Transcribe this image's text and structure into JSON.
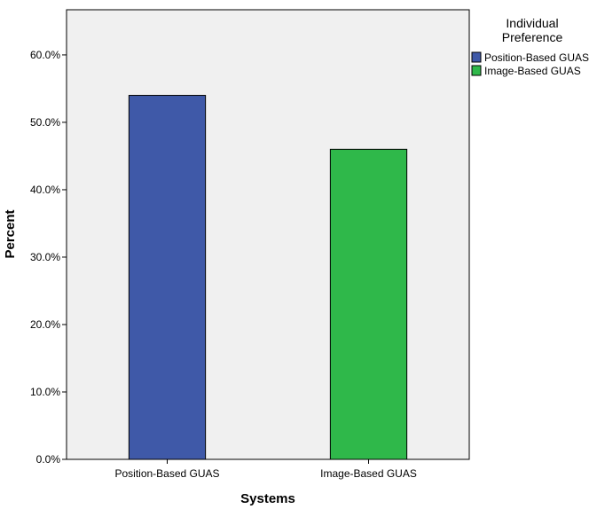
{
  "chart_data": {
    "type": "bar",
    "title": "",
    "xlabel": "Systems",
    "ylabel": "Percent",
    "categories": [
      "Position-Based GUAS",
      "Image-Based GUAS"
    ],
    "values": [
      54.0,
      46.0
    ],
    "colors": [
      "#3f59a8",
      "#2fb84a"
    ],
    "ylim": [
      0,
      66.7
    ],
    "yticks": [
      0,
      10,
      20,
      30,
      40,
      50,
      60
    ],
    "ytick_labels": [
      "0.0%",
      "10.0%",
      "20.0%",
      "30.0%",
      "40.0%",
      "50.0%",
      "60.0%"
    ],
    "plot_background": "#f0f0f0",
    "grid": false,
    "legend": {
      "placement": "top-right, outside plot",
      "title_lines": [
        "Individual",
        "Preference"
      ],
      "entries": [
        {
          "label": "Position-Based GUAS",
          "color": "#3f59a8"
        },
        {
          "label": "Image-Based GUAS",
          "color": "#2fb84a"
        }
      ]
    }
  }
}
